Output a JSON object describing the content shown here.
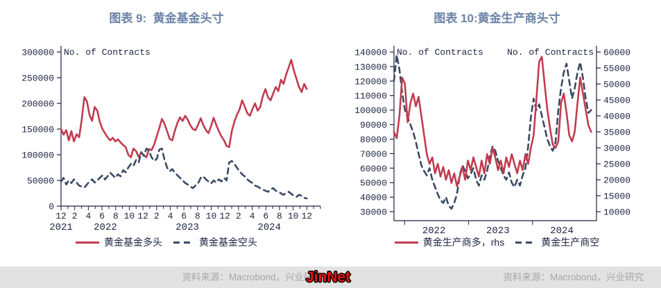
{
  "page": {
    "footer": {
      "source_left": "资料来源：Macrobond，兴业研究",
      "source_right": "资料来源：Macrobond，兴业研究",
      "watermark": "JinNet"
    },
    "colors": {
      "accent_red": "#c23b4f",
      "dark_slate": "#3a4a62",
      "title_blue": "#6b82a8",
      "axis_text": "#1c2340",
      "footer_bg": "#e2e2e2",
      "footer_text": "#a6a6a6",
      "watermark_red": "#ee1111"
    }
  },
  "chart_data": [
    {
      "type": "line",
      "title": "图表 9:  黄金基金头寸",
      "ylabel": "No. of Contracts",
      "xlabel": "",
      "grid": false,
      "legend_position": "bottom",
      "ylim": [
        0,
        300000
      ],
      "yticks": [
        0,
        50000,
        100000,
        150000,
        200000,
        250000,
        300000
      ],
      "x_start": "2021-12",
      "x_end": "2024-12",
      "x_tick_labels": [
        "12",
        "2",
        "4",
        "6",
        "8",
        "10",
        "12",
        "2",
        "4",
        "6",
        "8",
        "10",
        "12",
        "2",
        "4",
        "6",
        "8",
        "10",
        "12"
      ],
      "x_year_labels": [
        "2021",
        "2022",
        "2023",
        "2024"
      ],
      "series": [
        {
          "name": "黄金基金多头",
          "style": "solid",
          "color": "#c23b4f",
          "axis": "left",
          "values": [
            150000,
            139000,
            148000,
            128000,
            146000,
            126000,
            140000,
            134000,
            168000,
            212000,
            204000,
            178000,
            166000,
            193000,
            186000,
            164000,
            150000,
            142000,
            134000,
            128000,
            133000,
            126000,
            130000,
            124000,
            119000,
            115000,
            100000,
            95000,
            112000,
            107000,
            96000,
            104000,
            99000,
            95000,
            111000,
            109000,
            120000,
            136000,
            152000,
            170000,
            160000,
            146000,
            131000,
            128000,
            147000,
            162000,
            173000,
            166000,
            176000,
            168000,
            157000,
            150000,
            148000,
            159000,
            171000,
            158000,
            148000,
            142000,
            156000,
            172000,
            158000,
            146000,
            136000,
            128000,
            117000,
            115000,
            146000,
            164000,
            178000,
            188000,
            206000,
            194000,
            181000,
            176000,
            189000,
            200000,
            186000,
            193000,
            214000,
            228000,
            212000,
            206000,
            219000,
            232000,
            224000,
            246000,
            238000,
            256000,
            270000,
            285000,
            264000,
            248000,
            232000,
            222000,
            238000,
            228000
          ]
        },
        {
          "name": "黄金基金空头",
          "style": "dashed",
          "color": "#3a4a62",
          "axis": "left",
          "values": [
            48000,
            55000,
            42000,
            50000,
            45000,
            52000,
            46000,
            40000,
            38000,
            36000,
            42000,
            48000,
            52000,
            46000,
            50000,
            55000,
            60000,
            52000,
            58000,
            65000,
            60000,
            55000,
            62000,
            58000,
            70000,
            66000,
            75000,
            82000,
            78000,
            90000,
            85000,
            105000,
            98000,
            112000,
            108000,
            95000,
            88000,
            92000,
            110000,
            112000,
            90000,
            75000,
            68000,
            72000,
            65000,
            60000,
            55000,
            50000,
            45000,
            42000,
            38000,
            35000,
            40000,
            45000,
            55000,
            58000,
            52000,
            48000,
            44000,
            50000,
            46000,
            52000,
            48000,
            55000,
            50000,
            85000,
            88000,
            82000,
            75000,
            68000,
            62000,
            58000,
            52000,
            48000,
            45000,
            40000,
            38000,
            35000,
            32000,
            30000,
            28000,
            32000,
            35000,
            30000,
            28000,
            25000,
            22000,
            25000,
            28000,
            24000,
            20000,
            18000,
            22000,
            20000,
            16000,
            15000
          ]
        }
      ]
    },
    {
      "type": "line",
      "title": "图表 10:黄金生产商头寸",
      "ylabel_left": "No. of Contracts",
      "ylabel_right": "No. of Contracts",
      "xlabel": "",
      "grid": false,
      "legend_position": "bottom",
      "ylim_left": [
        30000,
        140000
      ],
      "ylim_right": [
        10000,
        60000
      ],
      "yticks_left": [
        30000,
        40000,
        50000,
        60000,
        70000,
        80000,
        90000,
        100000,
        110000,
        120000,
        130000,
        140000
      ],
      "yticks_right": [
        10000,
        15000,
        20000,
        25000,
        30000,
        35000,
        40000,
        45000,
        50000,
        55000,
        60000
      ],
      "x_start": "2021-11",
      "x_end": "2024-12",
      "x_year_labels": [
        "2022",
        "2023",
        "2024"
      ],
      "series": [
        {
          "name": "黄金生产商多，rhs",
          "style": "solid",
          "color": "#c23b4f",
          "axis": "right",
          "values": [
            35000,
            33000,
            40000,
            52000,
            50000,
            38000,
            44000,
            47000,
            43000,
            46000,
            40000,
            34000,
            28000,
            25000,
            27000,
            22000,
            25000,
            21000,
            24000,
            20000,
            23000,
            19000,
            22000,
            18000,
            21000,
            24000,
            20000,
            26000,
            23000,
            27000,
            24000,
            21000,
            26000,
            22000,
            28000,
            25000,
            30000,
            27000,
            23000,
            26000,
            22000,
            27000,
            24000,
            28000,
            25000,
            22000,
            26000,
            23000,
            28000,
            25000,
            30000,
            34000,
            45000,
            57000,
            58500,
            50000,
            42000,
            36000,
            31000,
            30000,
            32000,
            44000,
            47000,
            41000,
            34000,
            32000,
            35000,
            44000,
            52000,
            47000,
            42000,
            37000,
            35000
          ]
        },
        {
          "name": "黄金生产商空",
          "style": "dashed",
          "color": "#3a4a62",
          "axis": "left",
          "values": [
            120000,
            138000,
            128000,
            112000,
            100000,
            95000,
            90000,
            85000,
            78000,
            70000,
            62000,
            58000,
            55000,
            60000,
            52000,
            47000,
            42000,
            38000,
            36000,
            40000,
            34000,
            32000,
            36000,
            42000,
            55000,
            62000,
            58000,
            53000,
            56000,
            60000,
            52000,
            48000,
            55000,
            52000,
            58000,
            68000,
            75000,
            72000,
            65000,
            60000,
            55000,
            52000,
            57000,
            50000,
            47000,
            52000,
            48000,
            55000,
            60000,
            75000,
            95000,
            108000,
            100000,
            104000,
            96000,
            88000,
            80000,
            75000,
            72000,
            78000,
            100000,
            115000,
            126000,
            132000,
            120000,
            108000,
            115000,
            126000,
            133000,
            122000,
            108000,
            98000,
            100000
          ]
        }
      ]
    }
  ]
}
